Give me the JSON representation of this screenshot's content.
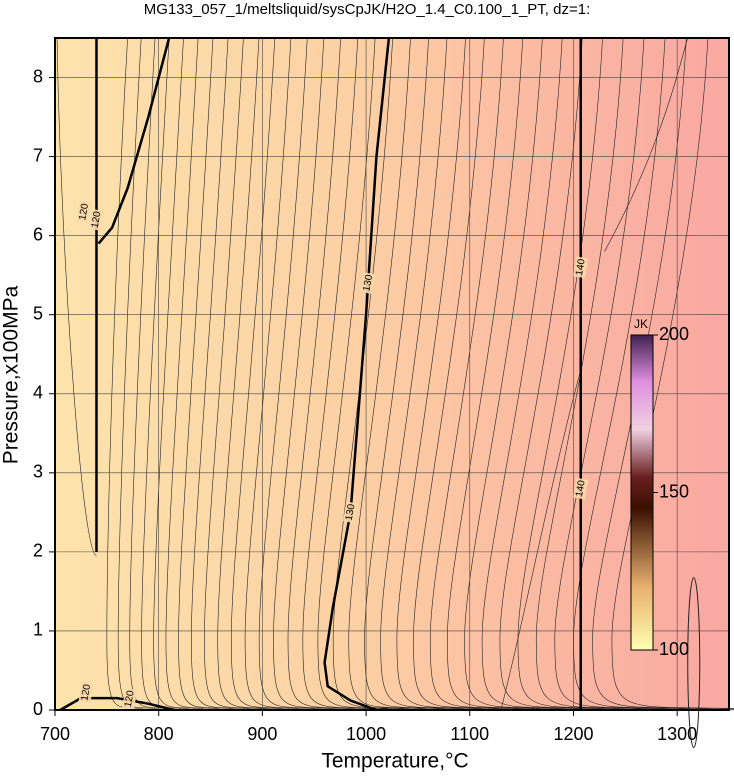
{
  "chart_data": {
    "type": "contour",
    "title": "MG133_057_1/meltsliquid/sysCpJK/H2O_1.4_C0.100_1_PT, dz=1:",
    "x_label": "Temperature,°C",
    "y_label": "Pressure,x100MPa",
    "xlim": [
      700,
      1350
    ],
    "ylim": [
      0,
      8.5
    ],
    "xticks": [
      700,
      800,
      900,
      1000,
      1100,
      1200,
      1300
    ],
    "yticks": [
      0,
      1,
      2,
      3,
      4,
      5,
      6,
      7,
      8
    ],
    "grid": true,
    "contours": [
      {
        "level": 120,
        "x": [
          740,
          740,
          740
        ],
        "y": [
          2.0,
          5.0,
          8.5
        ]
      },
      {
        "level": 120,
        "x": [
          810,
          790,
          770,
          755,
          742
        ],
        "y": [
          8.5,
          7.5,
          6.6,
          6.1,
          5.9
        ]
      },
      {
        "level": 120,
        "x": [
          705,
          725,
          760,
          790,
          815
        ],
        "y": [
          0,
          0.15,
          0.15,
          0.08,
          0
        ]
      },
      {
        "level": 130,
        "x": [
          1022,
          1010,
          1000,
          985,
          968,
          960,
          963,
          985,
          1010
        ],
        "y": [
          8.5,
          7.0,
          5.0,
          2.5,
          1.3,
          0.6,
          0.3,
          0.12,
          0
        ]
      },
      {
        "level": 140,
        "x": [
          1207,
          1207
        ],
        "y": [
          0,
          8.5
        ]
      }
    ],
    "contour_labels": [
      {
        "contour": 0,
        "x": 740,
        "y": 6.2
      },
      {
        "contour": 1,
        "x": 728,
        "y": 6.3
      },
      {
        "contour": 2,
        "x": 730,
        "y": 0.22
      },
      {
        "contour": 2,
        "x": 772,
        "y": 0.14
      },
      {
        "contour": 3,
        "x": 1002,
        "y": 5.4
      },
      {
        "contour": 3,
        "x": 985,
        "y": 2.5
      },
      {
        "contour": 4,
        "x": 1207,
        "y": 5.6
      },
      {
        "contour": 4,
        "x": 1207,
        "y": 2.8
      }
    ],
    "colorbar": {
      "label": "JK",
      "lim": [
        100,
        200
      ],
      "ticks": [
        100,
        150,
        200
      ]
    }
  }
}
